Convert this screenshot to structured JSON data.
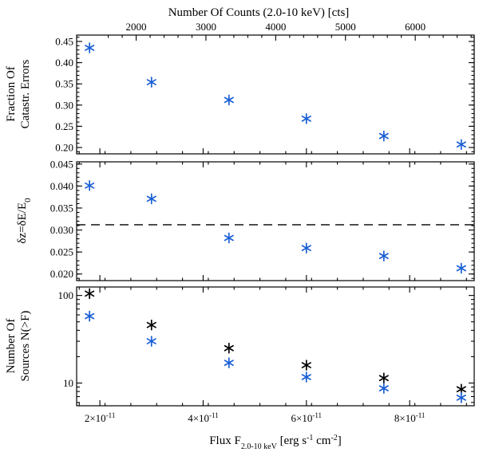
{
  "chart_data": {
    "type": "scatter",
    "top_axis": {
      "label": "Number Of Counts (2.0-10 keV) [cts]",
      "ticks": [
        2000,
        3000,
        4000,
        5000,
        6000
      ],
      "tick_labels": [
        "2000",
        "3000",
        "4000",
        "5000",
        "6000"
      ]
    },
    "x_axis": {
      "label_prefix": "Flux F",
      "label_sub": "2.0-10 keV",
      "label_units": " [erg s",
      "label_sup1": "-1",
      "label_mid": " cm",
      "label_sup2": "-2",
      "label_end": "]",
      "xlim": [
        1.55e-11,
        9.25e-11
      ],
      "ticks": [
        2e-11,
        4e-11,
        6e-11,
        8e-11
      ],
      "tick_mantissa": [
        "2",
        "4",
        "6",
        "8"
      ],
      "tick_times": "×10",
      "tick_exp": "-11"
    },
    "panels": [
      {
        "id": "catastrophic",
        "ylabel_line1": "Fraction Of",
        "ylabel_line2": "Catastr. Errors",
        "ylim": [
          0.185,
          0.465
        ],
        "yticks": [
          0.2,
          0.25,
          0.3,
          0.35,
          0.4,
          0.45
        ],
        "ytick_labels": [
          "0.20",
          "0.25",
          "0.30",
          "0.35",
          "0.40",
          "0.45"
        ],
        "series": [
          {
            "name": "fraction",
            "color": "#1a5fd6",
            "points": [
              [
                1.8e-11,
                0.435
              ],
              [
                3e-11,
                0.354
              ],
              [
                4.5e-11,
                0.312
              ],
              [
                6e-11,
                0.268
              ],
              [
                7.5e-11,
                0.227
              ],
              [
                9e-11,
                0.207
              ]
            ]
          }
        ]
      },
      {
        "id": "dz",
        "ylabel": "δz=δE/E",
        "ylabel_sub": "0",
        "ylim": [
          0.0185,
          0.0455
        ],
        "yticks": [
          0.02,
          0.025,
          0.03,
          0.035,
          0.04,
          0.045
        ],
        "ytick_labels": [
          "0.020",
          "0.025",
          "0.030",
          "0.035",
          "0.040",
          "0.045"
        ],
        "hline": 0.0312,
        "series": [
          {
            "name": "dz",
            "color": "#1a5fd6",
            "points": [
              [
                1.8e-11,
                0.0401
              ],
              [
                3e-11,
                0.0371
              ],
              [
                4.5e-11,
                0.0282
              ],
              [
                6e-11,
                0.0259
              ],
              [
                7.5e-11,
                0.0241
              ],
              [
                9e-11,
                0.0213
              ]
            ]
          }
        ]
      },
      {
        "id": "counts",
        "ylabel_line1": "Number Of",
        "ylabel_line2": "Sources N(>F)",
        "yscale": "log",
        "ylim": [
          5.5,
          125
        ],
        "yticks": [
          10,
          100
        ],
        "ytick_labels": [
          "10",
          "100"
        ],
        "series": [
          {
            "name": "black",
            "color": "#000000",
            "points": [
              [
                1.8e-11,
                105
              ],
              [
                3e-11,
                46
              ],
              [
                4.5e-11,
                25
              ],
              [
                6e-11,
                16
              ],
              [
                7.5e-11,
                11.4
              ],
              [
                9e-11,
                8.5
              ]
            ]
          },
          {
            "name": "blue",
            "color": "#1a5fd6",
            "points": [
              [
                1.8e-11,
                58
              ],
              [
                3e-11,
                30
              ],
              [
                4.5e-11,
                17
              ],
              [
                6e-11,
                11.7
              ],
              [
                7.5e-11,
                8.7
              ],
              [
                9e-11,
                6.8
              ]
            ]
          }
        ]
      }
    ]
  }
}
